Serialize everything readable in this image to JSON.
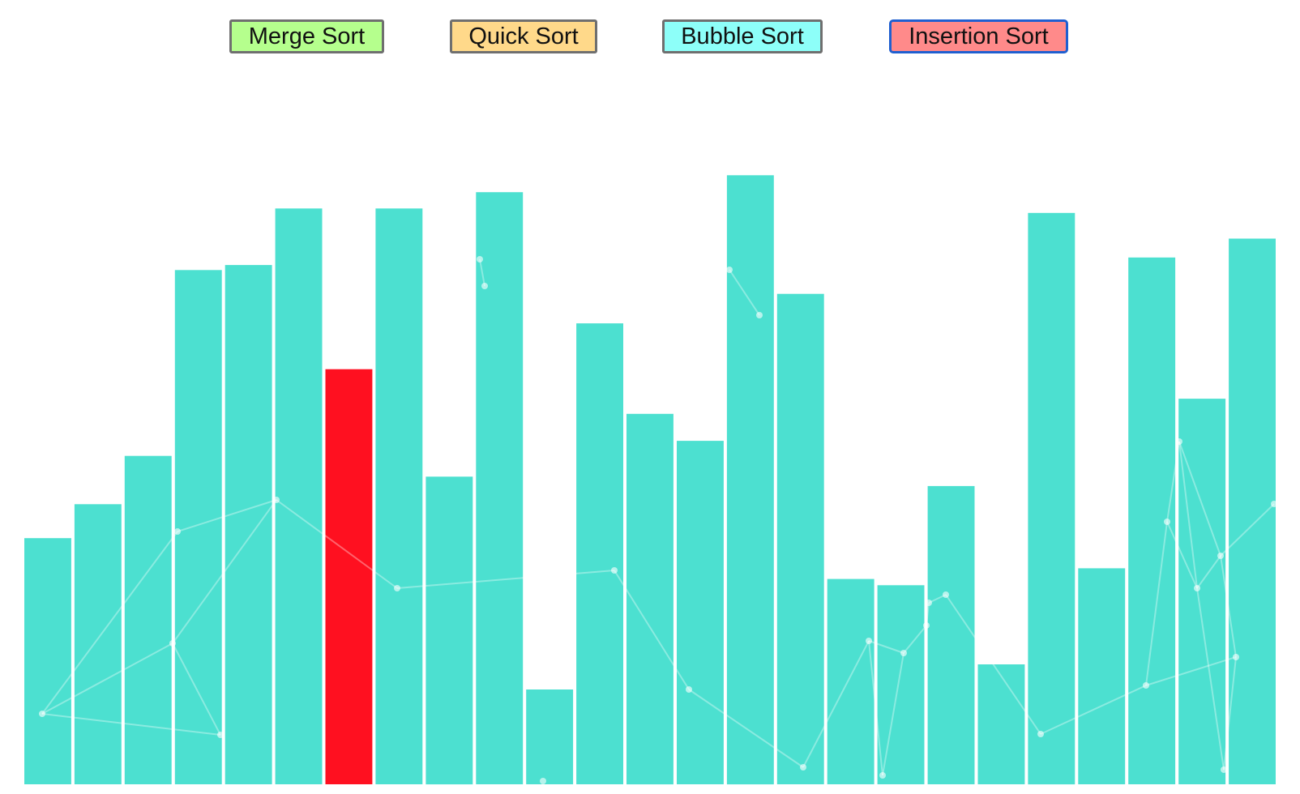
{
  "toolbar": {
    "buttons": [
      {
        "label": "Merge Sort",
        "color": "#b5ff8d"
      },
      {
        "label": "Quick Sort",
        "color": "#ffd98a"
      },
      {
        "label": "Bubble Sort",
        "color": "#8dfff9"
      },
      {
        "label": "Insertion Sort",
        "color": "#ff8a8a",
        "active": true
      }
    ]
  },
  "array": {
    "bar_color": "#4ce0d0",
    "highlight_color": "#ff1020",
    "highlight_index": 6,
    "max_value": 1000,
    "values": [
      392,
      446,
      523,
      819,
      827,
      917,
      661,
      917,
      490,
      943,
      151,
      734,
      590,
      547,
      970,
      781,
      327,
      317,
      475,
      191,
      910,
      344,
      839,
      614,
      869
    ]
  }
}
